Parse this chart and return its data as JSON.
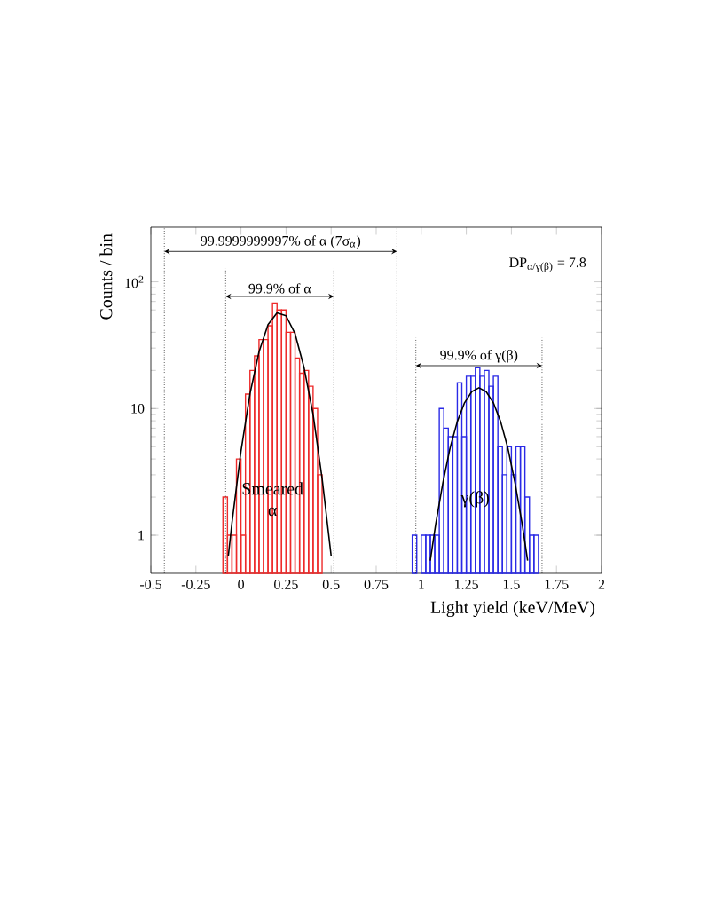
{
  "chart_data": {
    "type": "histogram",
    "xlabel": "Light yield (keV/MeV)",
    "ylabel": "Counts / bin",
    "log": "y",
    "xlim": [
      -0.5,
      2
    ],
    "ylim": [
      0.5,
      270
    ],
    "xticks": [
      -0.5,
      -0.25,
      0,
      0.25,
      0.5,
      0.75,
      1,
      1.25,
      1.5,
      1.75,
      2
    ],
    "yticks": [
      1,
      10,
      {
        "value": 100,
        "label": "10$^{2}$"
      }
    ],
    "series": [
      {
        "name": "Smeared α",
        "color": "#ee2a2a",
        "bins": [
          -0.1,
          -0.075,
          -0.05,
          -0.025,
          0,
          0.025,
          0.05,
          0.075,
          0.1,
          0.125,
          0.15,
          0.175,
          0.2,
          0.225,
          0.25,
          0.275,
          0.3,
          0.325,
          0.35,
          0.375,
          0.4,
          0.425,
          0.45
        ],
        "values": [
          2,
          1,
          1,
          4,
          1,
          13,
          20,
          26,
          35,
          35,
          45,
          68,
          60,
          60,
          40,
          40,
          25,
          19,
          20,
          15,
          10,
          3
        ]
      },
      {
        "name": "γ(β)",
        "color": "#2a2ae6",
        "bins": [
          0.95,
          0.975,
          1.0,
          1.025,
          1.05,
          1.075,
          1.1,
          1.125,
          1.15,
          1.175,
          1.2,
          1.225,
          1.25,
          1.275,
          1.3,
          1.325,
          1.35,
          1.375,
          1.4,
          1.425,
          1.45,
          1.475,
          1.5,
          1.525,
          1.55,
          1.575,
          1.6,
          1.625,
          1.65
        ],
        "values": [
          1,
          null,
          1,
          1,
          1,
          1,
          10,
          7,
          6,
          6,
          16,
          6,
          18,
          18,
          21,
          18,
          20,
          15,
          18,
          5,
          3,
          5,
          3,
          5,
          5,
          2,
          1,
          1
        ]
      },
      {
        "type": "line",
        "color": "#000000",
        "x": [
          -0.07,
          -0.05,
          0,
          0.05,
          0.1,
          0.15,
          0.2,
          0.25,
          0.3,
          0.35,
          0.4,
          0.45,
          0.5
        ],
        "values": [
          0.69,
          1.25,
          4.6,
          13.1,
          28,
          46,
          57,
          54,
          39,
          21,
          9.0,
          2.8,
          0.69
        ]
      },
      {
        "type": "line",
        "color": "#000000",
        "x": [
          1.05,
          1.08,
          1.12,
          1.16,
          1.2,
          1.24,
          1.28,
          1.32,
          1.36,
          1.4,
          1.44,
          1.48,
          1.52,
          1.56,
          1.59
        ],
        "values": [
          0.63,
          1.22,
          2.6,
          4.9,
          7.9,
          11.1,
          13.6,
          14.6,
          13.6,
          11.1,
          7.9,
          4.9,
          2.6,
          1.22,
          0.63
        ]
      }
    ],
    "ref_lines": [
      {
        "axis": "x",
        "value": -0.425,
        "label": "99.9999999997% of α (7σ$_{α}$)"
      },
      {
        "axis": "x",
        "value": 0.865
      },
      {
        "axis": "x",
        "value": -0.085,
        "label": "99.9% of α"
      },
      {
        "axis": "x",
        "value": 0.515
      },
      {
        "axis": "x",
        "value": 0.97,
        "label": "99.9% of γ(β)"
      },
      {
        "axis": "x",
        "value": 1.67
      }
    ],
    "annotations": [
      "DP$_{α/γ(β)}$ = 7.8"
    ]
  }
}
